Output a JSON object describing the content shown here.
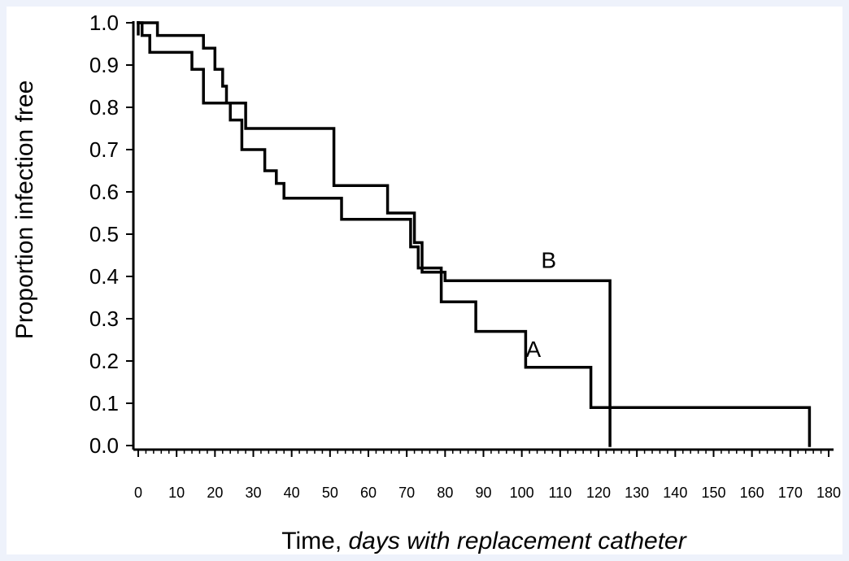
{
  "chart_data": {
    "type": "line",
    "step": true,
    "xlabel_prefix": "Time, ",
    "xlabel_italic": "days with replacement catheter",
    "ylabel": "Proportion infection free",
    "xlim": [
      0,
      180
    ],
    "ylim": [
      0,
      1
    ],
    "x_ticks": [
      0,
      10,
      20,
      30,
      40,
      50,
      60,
      70,
      80,
      90,
      100,
      110,
      120,
      130,
      140,
      150,
      160,
      170,
      180
    ],
    "y_ticks": [
      "0.0",
      "0.1",
      "0.2",
      "0.3",
      "0.4",
      "0.5",
      "0.6",
      "0.7",
      "0.8",
      "0.9",
      "1.0"
    ],
    "grid": false,
    "line_color": "#000000",
    "series": [
      {
        "name": "A",
        "label_at": [
          103,
          0.21
        ],
        "end_drop": false,
        "points": [
          [
            0,
            1.0
          ],
          [
            1,
            0.97
          ],
          [
            3,
            0.93
          ],
          [
            14,
            0.89
          ],
          [
            17,
            0.81
          ],
          [
            24,
            0.77
          ],
          [
            27,
            0.7
          ],
          [
            33,
            0.65
          ],
          [
            36,
            0.62
          ],
          [
            38,
            0.585
          ],
          [
            53,
            0.535
          ],
          [
            65,
            0.535
          ],
          [
            71,
            0.47
          ],
          [
            73,
            0.42
          ],
          [
            79,
            0.34
          ],
          [
            88,
            0.27
          ],
          [
            101,
            0.185
          ],
          [
            118,
            0.09
          ],
          [
            175,
            0.09
          ],
          [
            175,
            0.0
          ]
        ]
      },
      {
        "name": "B",
        "label_at": [
          107,
          0.42
        ],
        "end_drop": true,
        "points": [
          [
            0,
            1.0
          ],
          [
            5,
            0.97
          ],
          [
            17,
            0.94
          ],
          [
            20,
            0.89
          ],
          [
            22,
            0.85
          ],
          [
            23,
            0.81
          ],
          [
            28,
            0.75
          ],
          [
            50,
            0.75
          ],
          [
            51,
            0.615
          ],
          [
            64,
            0.615
          ],
          [
            65,
            0.55
          ],
          [
            71,
            0.55
          ],
          [
            72,
            0.48
          ],
          [
            74,
            0.41
          ],
          [
            80,
            0.39
          ],
          [
            123,
            0.39
          ],
          [
            123,
            0.0
          ]
        ]
      }
    ]
  }
}
